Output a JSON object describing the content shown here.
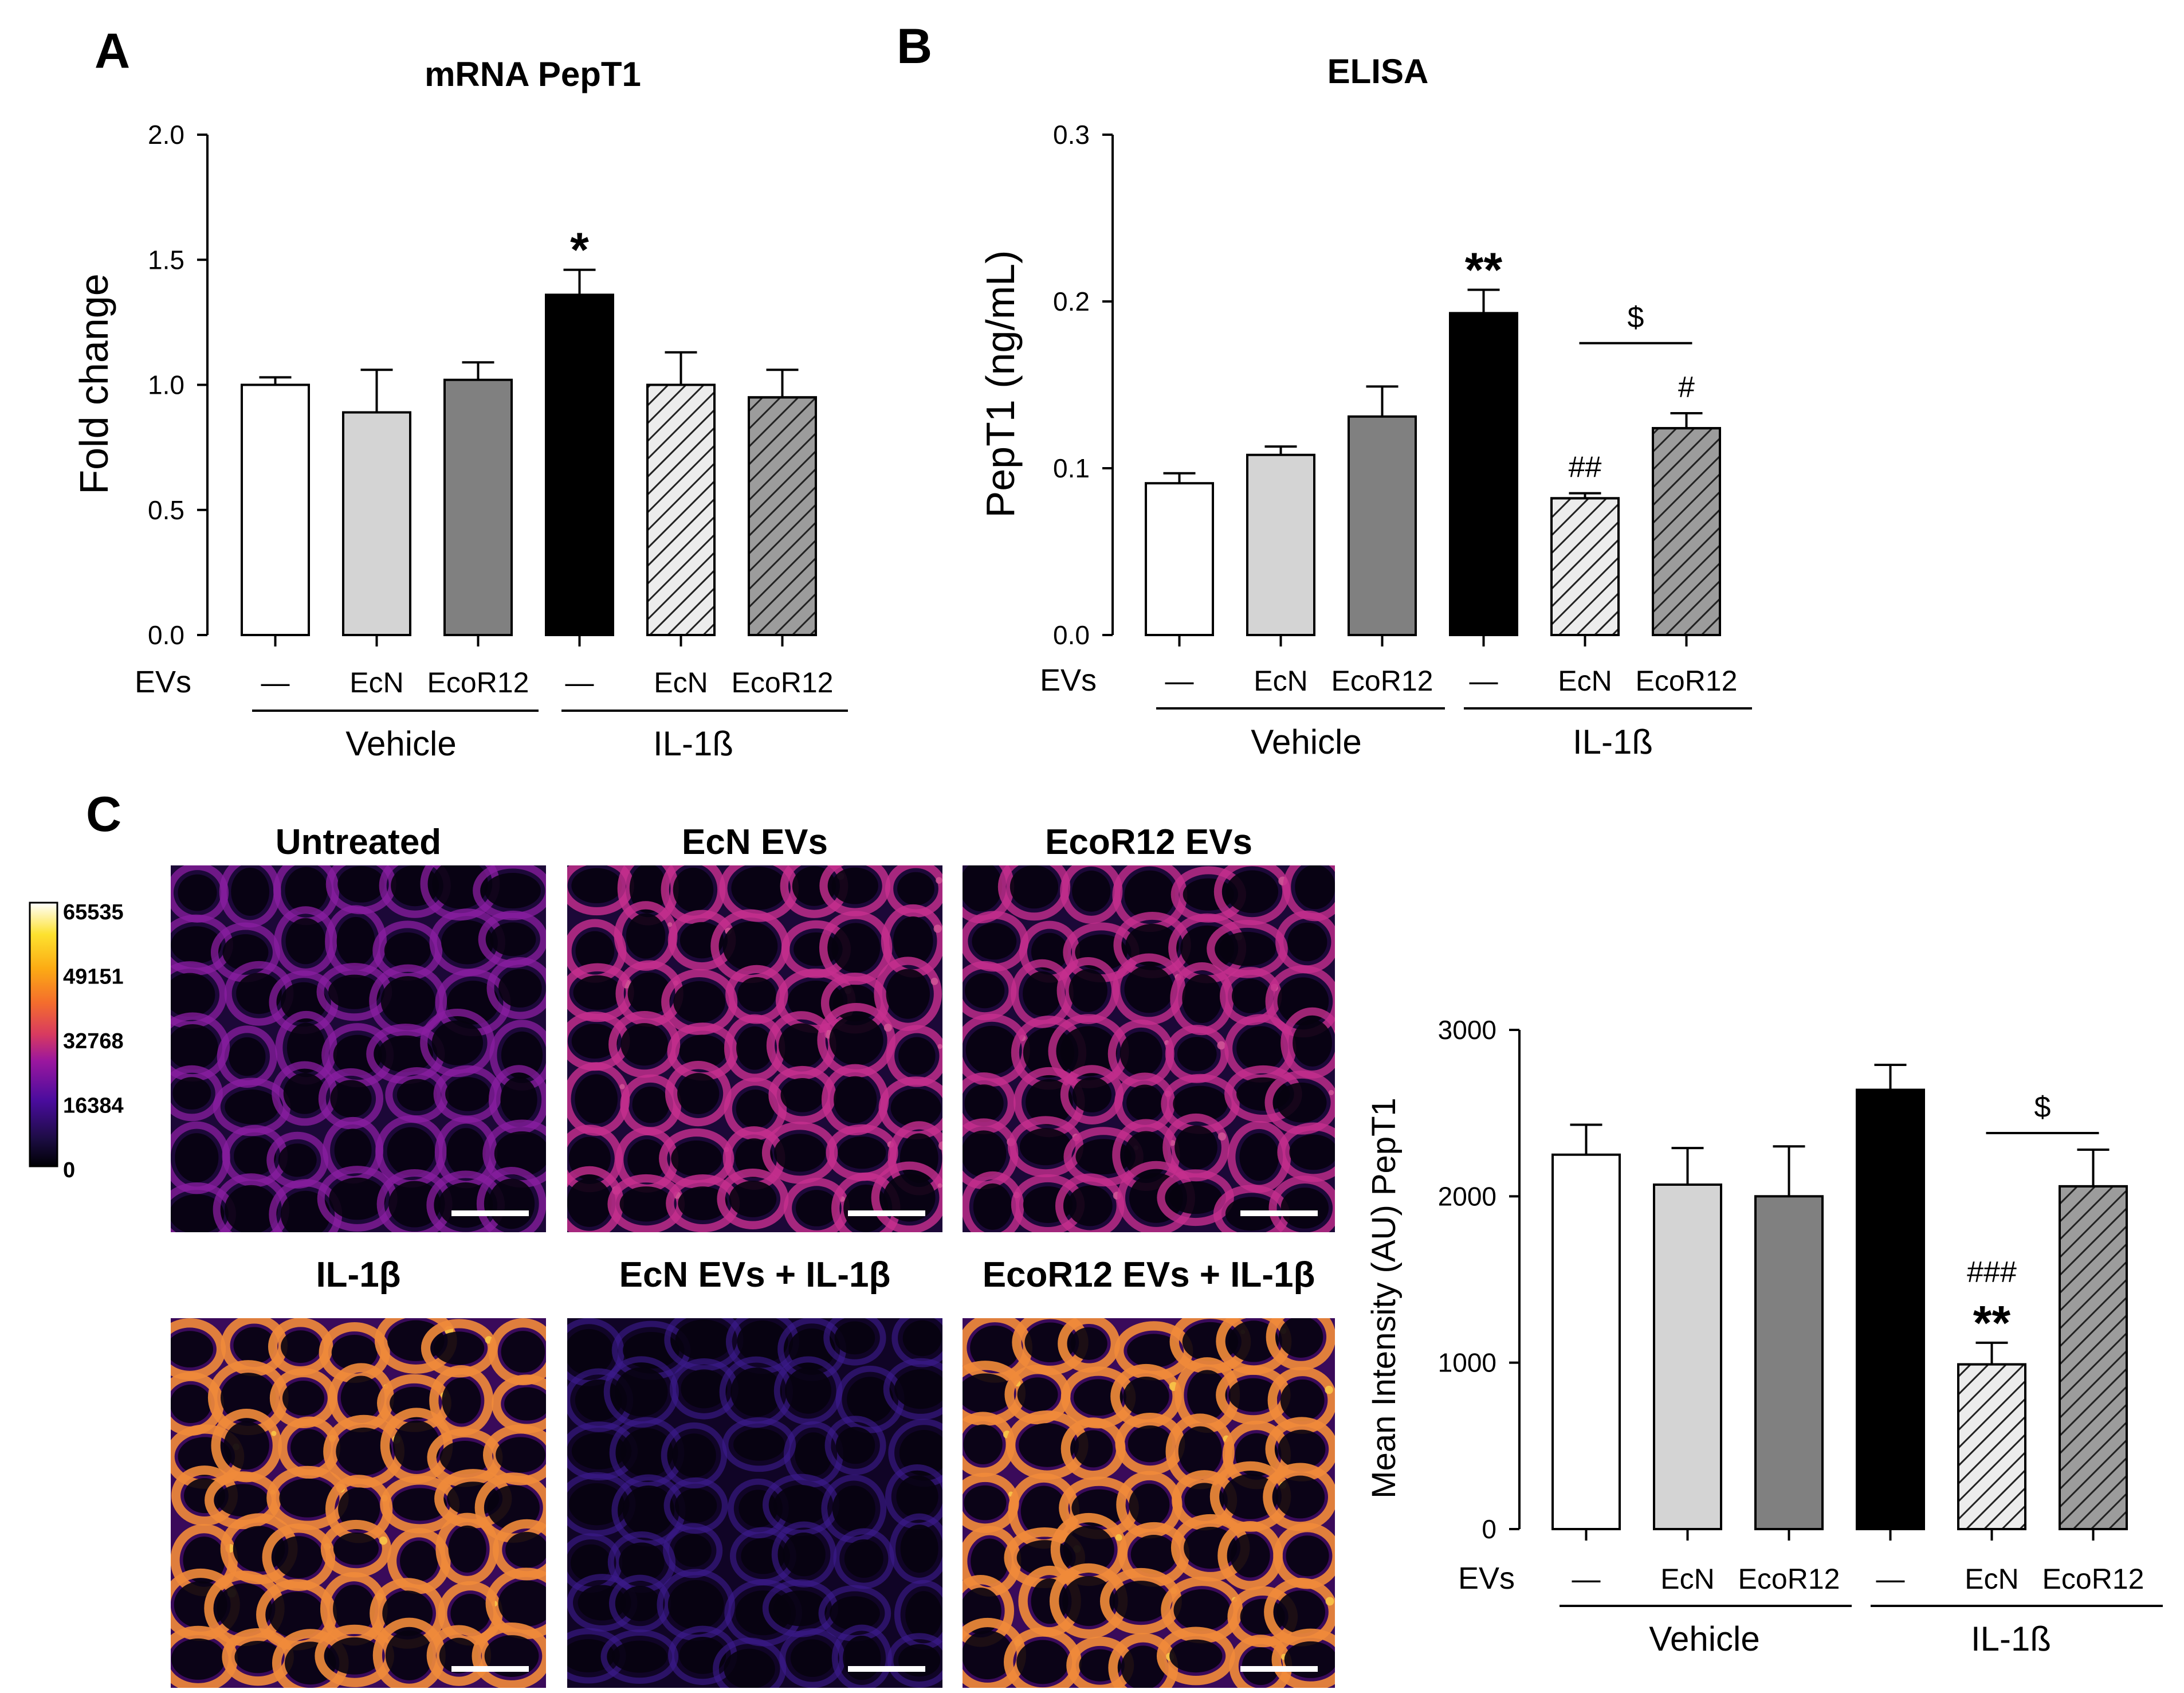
{
  "panels": {
    "a": "A",
    "b": "B",
    "c": "C"
  },
  "bar_style": {
    "fills": [
      "#ffffff",
      "#d4d4d4",
      "#808080",
      "#000000",
      "#ececec",
      "#9c9c9c"
    ],
    "hatched": [
      false,
      false,
      false,
      false,
      true,
      true
    ],
    "hatch_color": "#222222"
  },
  "chart_data": [
    {
      "id": "A",
      "type": "bar",
      "title": "mRNA PepT1",
      "ylabel": "Fold change",
      "xlabel": "",
      "ylim": [
        0,
        2.0
      ],
      "yticks": [
        "0.0",
        "0.5",
        "1.0",
        "1.5",
        "2.0"
      ],
      "row_label": "EVs",
      "categories": [
        "—",
        "EcN",
        "EcoR12",
        "—",
        "EcN",
        "EcoR12"
      ],
      "groups": [
        {
          "label": "Vehicle"
        },
        {
          "label": "IL-1ß"
        }
      ],
      "values": [
        1.0,
        0.89,
        1.02,
        1.36,
        1.0,
        0.95
      ],
      "errors": [
        0.03,
        0.17,
        0.07,
        0.1,
        0.13,
        0.11
      ],
      "annotations": [
        {
          "bar": 3,
          "lines": [
            "*"
          ]
        }
      ],
      "brackets": []
    },
    {
      "id": "B",
      "type": "bar",
      "title": "ELISA",
      "ylabel": "PepT1 (ng/mL)",
      "xlabel": "",
      "ylim": [
        0,
        0.3
      ],
      "yticks": [
        "0.0",
        "0.1",
        "0.2",
        "0.3"
      ],
      "row_label": "EVs",
      "categories": [
        "—",
        "EcN",
        "EcoR12",
        "—",
        "EcN",
        "EcoR12"
      ],
      "groups": [
        {
          "label": "Vehicle"
        },
        {
          "label": "IL-1ß"
        }
      ],
      "values": [
        0.091,
        0.108,
        0.131,
        0.193,
        0.082,
        0.124
      ],
      "errors": [
        0.006,
        0.005,
        0.018,
        0.014,
        0.003,
        0.009
      ],
      "annotations": [
        {
          "bar": 3,
          "lines": [
            "**"
          ]
        },
        {
          "bar": 4,
          "lines": [
            "##"
          ]
        },
        {
          "bar": 5,
          "lines": [
            "#"
          ]
        }
      ],
      "brackets": [
        {
          "from": 4,
          "to": 5,
          "value": 0.175,
          "label": "$"
        }
      ]
    },
    {
      "id": "C",
      "type": "bar",
      "title": "",
      "ylabel": "Mean Intensity (AU)  PepT1",
      "xlabel": "",
      "ylim": [
        0,
        3000
      ],
      "yticks": [
        "0",
        "1000",
        "2000",
        "3000"
      ],
      "row_label": "EVs",
      "categories": [
        "—",
        "EcN",
        "EcoR12",
        "—",
        "EcN",
        "EcoR12"
      ],
      "groups": [
        {
          "label": "Vehicle"
        },
        {
          "label": "IL-1ß"
        }
      ],
      "values": [
        2250,
        2070,
        2000,
        2640,
        990,
        2060
      ],
      "errors": [
        180,
        220,
        300,
        150,
        130,
        220
      ],
      "annotations": [
        {
          "bar": 4,
          "lines": [
            "###",
            "**"
          ]
        }
      ],
      "brackets": [
        {
          "from": 4,
          "to": 5,
          "value": 2380,
          "label": "$"
        }
      ]
    }
  ],
  "micrographs": {
    "titles": [
      "Untreated",
      "EcN EVs",
      "EcoR12 EVs",
      "IL-1β",
      "EcN EVs + IL-1β",
      "EcoR12 EVs + IL-1β"
    ],
    "brightness": [
      0.5,
      0.66,
      0.62,
      0.9,
      0.22,
      0.92
    ]
  },
  "colorbar": {
    "ticks": [
      "65535",
      "49151",
      "32768",
      "16384",
      "0"
    ]
  }
}
